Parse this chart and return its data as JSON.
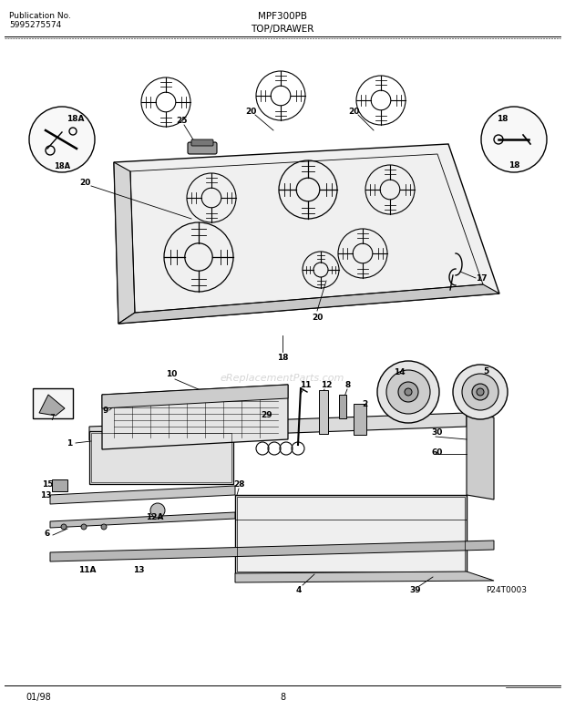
{
  "title_left_line1": "Publication No.",
  "title_left_line2": "5995275574",
  "title_center": "MPF300PB",
  "title_center2": "TOP/DRAWER",
  "bottom_left": "01/98",
  "bottom_center": "8",
  "bottom_right": "P24T0003",
  "watermark": "eReplacementParts.com",
  "bg_color": "#ffffff",
  "line_color": "#000000"
}
